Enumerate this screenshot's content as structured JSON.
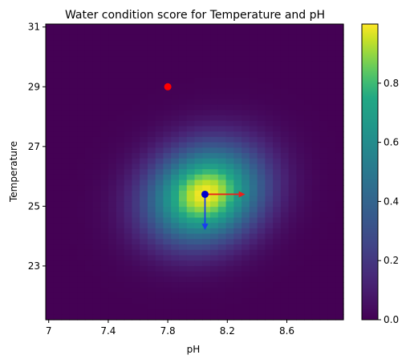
{
  "chart_data": {
    "type": "heatmap",
    "title": "Water condition score for Temperature and pH",
    "xlabel": "pH",
    "ylabel": "Temperature",
    "xlim": [
      6.98,
      8.98
    ],
    "ylim": [
      21.2,
      31.1
    ],
    "xticks": [
      7,
      7.4,
      7.8,
      8.2,
      8.6
    ],
    "xtick_labels": [
      "7",
      "7.4",
      "7.8",
      "8.2",
      "8.6"
    ],
    "yticks": [
      23,
      25,
      27,
      29,
      31
    ],
    "ytick_labels": [
      "23",
      "25",
      "27",
      "29",
      "31"
    ],
    "grid_nx": 38,
    "grid_ny": 55,
    "score_peak": {
      "ph": 8.05,
      "temperature": 25.4,
      "max": 1.0
    },
    "score_spread": {
      "ph_sigma": 0.26,
      "temperature_sigma": 1.1,
      "correlation": 0.15
    },
    "colorbar": {
      "colormap": "viridis",
      "range": [
        0,
        1
      ],
      "ticks": [
        0,
        0.2,
        0.4,
        0.6,
        0.8
      ],
      "tick_labels": [
        "0.0",
        "0.2",
        "0.4",
        "0.6",
        "0.8"
      ]
    },
    "points": [
      {
        "ph": 7.8,
        "temperature": 29.0,
        "color": "#ff0000"
      },
      {
        "ph": 8.05,
        "temperature": 25.4,
        "color": "#0000cc"
      }
    ],
    "arrows": [
      {
        "from": [
          8.05,
          25.4
        ],
        "to": [
          8.32,
          25.4
        ],
        "color": "#e8211c"
      },
      {
        "from": [
          8.05,
          25.4
        ],
        "to": [
          8.05,
          24.2
        ],
        "color": "#1a3cf0"
      }
    ]
  }
}
